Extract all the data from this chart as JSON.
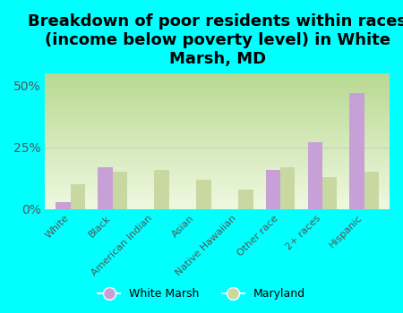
{
  "title": "Breakdown of poor residents within races\n(income below poverty level) in White\nMarsh, MD",
  "categories": [
    "White",
    "Black",
    "American Indian",
    "Asian",
    "Native Hawaiian",
    "Other race",
    "2+ races",
    "Hispanic"
  ],
  "white_marsh": [
    3,
    17,
    0,
    0,
    0,
    16,
    27,
    47
  ],
  "maryland": [
    10,
    15,
    16,
    12,
    8,
    17,
    13,
    15
  ],
  "color_wm": "#c8a0d8",
  "color_md": "#c8d8a0",
  "background_color": "#00ffff",
  "grad_top": "#b8d890",
  "grad_bottom": "#eef8e0",
  "bar_width": 0.35,
  "ylim": [
    0,
    55
  ],
  "yticks": [
    0,
    25,
    50
  ],
  "ytick_labels": [
    "0%",
    "25%",
    "50%"
  ],
  "title_fontsize": 13,
  "legend_wm": "White Marsh",
  "legend_md": "Maryland"
}
